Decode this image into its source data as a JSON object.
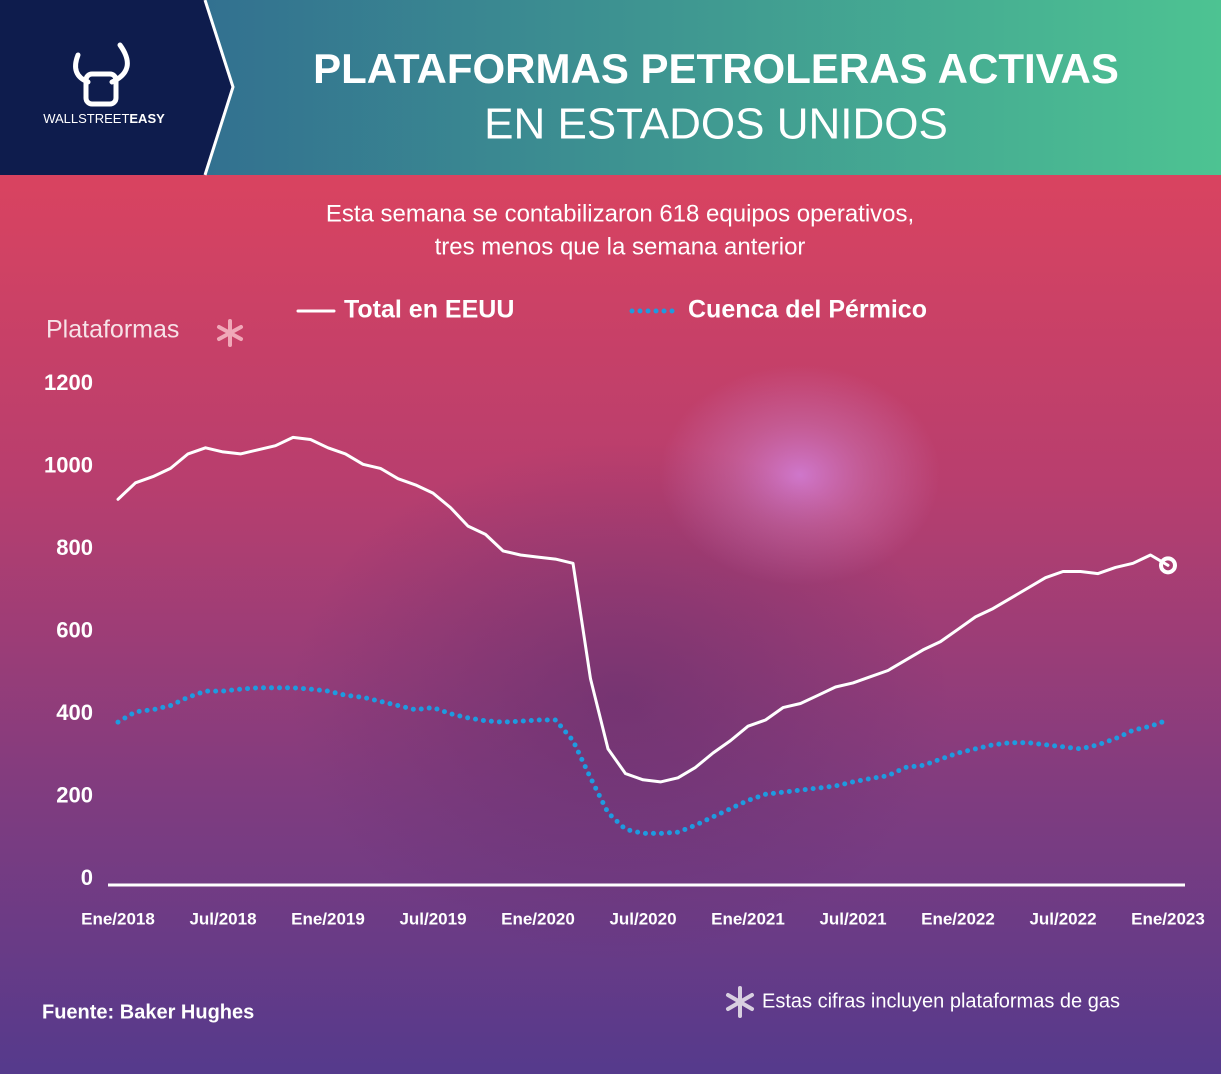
{
  "brand": {
    "light": "WALLSTREET",
    "bold": "EASY"
  },
  "chart_data": {
    "type": "line",
    "title": "PLATAFORMAS PETROLERAS ACTIVAS",
    "title_line2": "EN ESTADOS UNIDOS",
    "subtitle": [
      "Esta semana se contabilizaron 618 equipos operativos,",
      "tres menos que la semana anterior"
    ],
    "ylabel": "Plataformas",
    "note": "Estas cifras incluyen plataformas de gas",
    "source": "Fuente: Baker Hughes",
    "legend": "top",
    "categories": [
      "Ene/2018",
      null,
      null,
      null,
      null,
      null,
      "Jul/2018",
      null,
      null,
      null,
      null,
      null,
      "Ene/2019",
      null,
      null,
      null,
      null,
      null,
      "Jul/2019",
      null,
      null,
      null,
      null,
      null,
      "Ene/2020",
      null,
      null,
      null,
      null,
      null,
      "Jul/2020",
      null,
      null,
      null,
      null,
      null,
      "Ene/2021",
      null,
      null,
      null,
      null,
      null,
      "Jul/2021",
      null,
      null,
      null,
      null,
      null,
      "Ene/2022",
      null,
      null,
      null,
      null,
      null,
      "Jul/2022",
      null,
      null,
      null,
      null,
      null,
      "Ene/2023"
    ],
    "series": [
      {
        "name": "Total en EEUU",
        "color": "#ffffff",
        "style": "solid",
        "values": [
          935,
          975,
          990,
          1010,
          1045,
          1060,
          1050,
          1045,
          1055,
          1065,
          1085,
          1080,
          1060,
          1045,
          1020,
          1010,
          985,
          970,
          950,
          915,
          870,
          850,
          810,
          800,
          795,
          790,
          780,
          500,
          330,
          270,
          255,
          250,
          260,
          285,
          320,
          350,
          385,
          400,
          430,
          440,
          460,
          480,
          490,
          505,
          520,
          545,
          570,
          590,
          620,
          650,
          670,
          695,
          720,
          745,
          760,
          760,
          755,
          770,
          780,
          800,
          775
        ]
      },
      {
        "name": "Cuenca del Pérmico",
        "color": "#1e9be0",
        "style": "dotted",
        "values": [
          395,
          420,
          425,
          435,
          455,
          470,
          470,
          475,
          478,
          478,
          478,
          475,
          470,
          460,
          455,
          445,
          435,
          425,
          430,
          415,
          405,
          398,
          395,
          397,
          400,
          400,
          350,
          260,
          175,
          135,
          125,
          125,
          128,
          145,
          165,
          185,
          205,
          220,
          225,
          230,
          235,
          240,
          250,
          258,
          265,
          285,
          290,
          305,
          320,
          330,
          340,
          345,
          345,
          340,
          335,
          330,
          340,
          355,
          375,
          385,
          400
        ]
      }
    ],
    "ylim": [
      0,
      1200
    ],
    "yticks": [
      0,
      200,
      400,
      600,
      800,
      1000,
      1200
    ],
    "grid": false
  }
}
